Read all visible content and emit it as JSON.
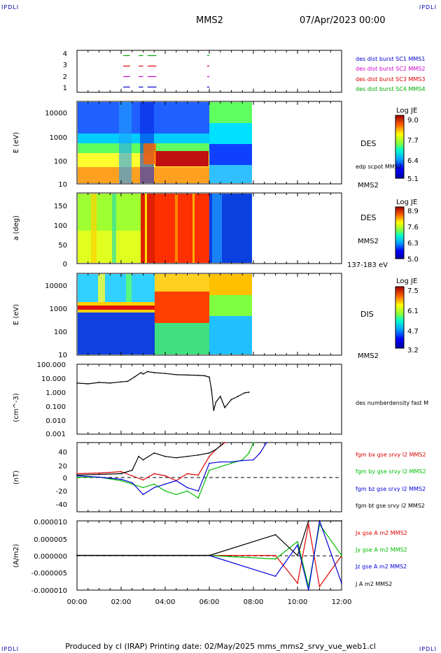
{
  "header": {
    "corner_label": "IPDLI",
    "spacecraft": "MMS2",
    "date": "07/Apr/2023 00:00"
  },
  "footer": {
    "text": "Produced by cl (IRAP)   Printing date: 02/May/2025   mms_mms2_srvy_vue_web1.cl"
  },
  "time_axis": {
    "ticks": [
      "00:00",
      "02:00",
      "04:00",
      "06:00",
      "08:00",
      "10:00",
      "12:00"
    ],
    "range_hours": [
      0,
      12
    ]
  },
  "panels": {
    "burst": {
      "yticks": [
        "4",
        "3",
        "2",
        "1"
      ],
      "legend": [
        {
          "text": "des dist burst SC1 MMS1",
          "color": "#0000cc"
        },
        {
          "text": "des dist burst SC2 MMS2",
          "color": "#cc00cc"
        },
        {
          "text": "des dist burst SC3 MMS3",
          "color": "#dd0000"
        },
        {
          "text": "des dist burst SC4 MMS4",
          "color": "#00aa00"
        }
      ]
    },
    "des_energy": {
      "ylabel": "E (eV)",
      "yticks": [
        "10000",
        "1000",
        "100",
        "10"
      ],
      "side_label": "DES",
      "side_label2": "edp scpot MMS2",
      "bottom_right": "MMS2",
      "colorbar": {
        "title": "Log JE",
        "ticks": [
          "9.0",
          "7.7",
          "6.4",
          "5.1"
        ]
      }
    },
    "des_pitch": {
      "ylabel": "a (deg)",
      "yticks": [
        "150",
        "100",
        "50",
        "0"
      ],
      "side_label": "DES",
      "side_label2": "MMS2",
      "bottom_right": "137-183 eV",
      "colorbar": {
        "title": "Log JE",
        "ticks": [
          "8.9",
          "7.6",
          "6.3",
          "5.0"
        ]
      }
    },
    "dis_energy": {
      "ylabel": "E (eV)",
      "yticks": [
        "10000",
        "1000",
        "100",
        "10"
      ],
      "side_label": "DIS",
      "bottom_right": "MMS2",
      "colorbar": {
        "title": "Log JE",
        "ticks": [
          "7.5",
          "6.1",
          "4.7",
          "3.2"
        ]
      }
    },
    "density": {
      "ylabel": "(cm^-3)",
      "yticks": [
        "100.000",
        "10.000",
        "1.000",
        "0.100",
        "0.010",
        "0.001"
      ],
      "legend": [
        {
          "text": "des numberdensity fast M",
          "color": "#000000"
        }
      ]
    },
    "bfield": {
      "ylabel": "(nT)",
      "yticks": [
        "40",
        "20",
        "0",
        "-20",
        "-40"
      ],
      "legend": [
        {
          "text": "fgm bx gse srvy l2 MMS2",
          "color": "#dd0000"
        },
        {
          "text": "fgm by gse srvy l2 MMS2",
          "color": "#00bb00"
        },
        {
          "text": "fgm bz gse srvy l2 MMS2",
          "color": "#0000dd"
        },
        {
          "text": "fgm bt gse srvy l2 MMS2",
          "color": "#000000"
        }
      ]
    },
    "current": {
      "ylabel": "(A/m2)",
      "yticks": [
        "0.000010",
        "0.000005",
        "0.000000",
        "-0.000005",
        "-0.000010"
      ],
      "legend": [
        {
          "text": "Jx gse A m2 MMS2",
          "color": "#dd0000"
        },
        {
          "text": "Jy gse A m2 MMS2",
          "color": "#00bb00"
        },
        {
          "text": "Jz gse A m2 MMS2",
          "color": "#0000dd"
        },
        {
          "text": "J A m2 MMS2",
          "color": "#000000"
        }
      ]
    }
  },
  "chart_data": [
    {
      "type": "scatter",
      "panel": "burst",
      "series": [
        {
          "name": "des dist burst SC1 MMS1",
          "color": "#0000cc",
          "y": 1,
          "intervals_h": [
            [
              2.1,
              2.4
            ],
            [
              2.8,
              3.0
            ],
            [
              3.2,
              3.6
            ],
            [
              5.9,
              6.0
            ]
          ]
        },
        {
          "name": "des dist burst SC2 MMS2",
          "color": "#cc00cc",
          "y": 2,
          "intervals_h": [
            [
              2.1,
              2.4
            ],
            [
              2.8,
              3.0
            ],
            [
              3.2,
              3.6
            ],
            [
              5.9,
              6.0
            ]
          ]
        },
        {
          "name": "des dist burst SC3 MMS3",
          "color": "#dd0000",
          "y": 3,
          "intervals_h": [
            [
              2.1,
              2.4
            ],
            [
              2.8,
              3.0
            ],
            [
              3.2,
              3.6
            ],
            [
              5.9,
              6.0
            ]
          ]
        },
        {
          "name": "des dist burst SC4 MMS4",
          "color": "#00aa00",
          "y": 4,
          "intervals_h": [
            [
              2.1,
              2.4
            ],
            [
              2.8,
              3.0
            ],
            [
              3.2,
              3.6
            ],
            [
              5.9,
              6.0
            ]
          ]
        }
      ],
      "ylim": [
        0.5,
        4.5
      ]
    },
    {
      "type": "heatmap",
      "panel": "des_energy",
      "x_range_h": [
        0,
        8
      ],
      "ylim": [
        10,
        30000
      ],
      "log_y": true,
      "zlim": [
        5.1,
        9.0
      ]
    },
    {
      "type": "heatmap",
      "panel": "des_pitch",
      "x_range_h": [
        0,
        8
      ],
      "ylim": [
        0,
        180
      ],
      "zlim": [
        5.0,
        8.9
      ]
    },
    {
      "type": "heatmap",
      "panel": "dis_energy",
      "x_range_h": [
        0,
        8
      ],
      "ylim": [
        10,
        20000
      ],
      "log_y": true,
      "zlim": [
        3.2,
        7.5
      ]
    },
    {
      "type": "line",
      "panel": "density",
      "log_y": true,
      "ylim": [
        0.001,
        100
      ],
      "series": [
        {
          "name": "des numberdensity fast M",
          "color": "#000000",
          "x": [
            0.0,
            0.5,
            1.0,
            1.5,
            2.0,
            2.3,
            2.6,
            2.9,
            3.0,
            3.2,
            3.5,
            4.0,
            4.5,
            5.0,
            5.5,
            5.8,
            6.0,
            6.1,
            6.2,
            6.3,
            6.5,
            6.7,
            7.0,
            7.3,
            7.6,
            7.8
          ],
          "y": [
            4.5,
            4.0,
            5.0,
            4.5,
            5.5,
            6.0,
            12,
            25,
            20,
            30,
            25,
            22,
            18,
            17,
            16,
            15,
            12,
            1.5,
            0.05,
            0.2,
            0.5,
            0.08,
            0.3,
            0.5,
            0.9,
            1.0
          ]
        }
      ]
    },
    {
      "type": "line",
      "panel": "bfield",
      "ylim": [
        -50,
        50
      ],
      "series": [
        {
          "name": "fgm bx gse srvy l2 MMS2",
          "color": "#dd0000",
          "x": [
            0,
            1,
            2,
            2.5,
            3,
            3.5,
            4,
            4.5,
            5,
            5.5,
            6,
            6.3,
            6.5,
            6.7
          ],
          "y": [
            5,
            6,
            8,
            2,
            -4,
            5,
            2,
            -5,
            5,
            3,
            30,
            40,
            45,
            50
          ]
        },
        {
          "name": "fgm by gse srvy l2 MMS2",
          "color": "#00bb00",
          "x": [
            0,
            1,
            2,
            2.5,
            3,
            3.5,
            4,
            4.5,
            5,
            5.5,
            6,
            6.5,
            7,
            7.5,
            7.8,
            8.0
          ],
          "y": [
            0,
            0,
            -5,
            -10,
            -15,
            -10,
            -20,
            -25,
            -20,
            -30,
            10,
            15,
            20,
            25,
            35,
            50
          ]
        },
        {
          "name": "fgm bz gse srvy l2 MMS2",
          "color": "#0000dd",
          "x": [
            0,
            1,
            2,
            2.5,
            3,
            3.5,
            4,
            4.5,
            5,
            5.5,
            6,
            6.5,
            7,
            7.5,
            8,
            8.3,
            8.6
          ],
          "y": [
            2,
            0,
            -3,
            -8,
            -25,
            -15,
            -10,
            -5,
            -15,
            -20,
            20,
            22,
            22,
            24,
            25,
            35,
            50
          ]
        },
        {
          "name": "fgm bt gse srvy l2 MMS2",
          "color": "#000000",
          "x": [
            0,
            1,
            2,
            2.5,
            2.8,
            3,
            3.5,
            4,
            4.5,
            5,
            5.5,
            6,
            6.3,
            6.6
          ],
          "y": [
            3,
            4,
            5,
            10,
            30,
            25,
            35,
            30,
            28,
            30,
            32,
            35,
            40,
            48
          ]
        }
      ]
    },
    {
      "type": "line",
      "panel": "current",
      "ylim": [
        -1e-05,
        1e-05
      ],
      "series": [
        {
          "name": "Jx gse A m2 MMS2",
          "color": "#dd0000",
          "x": [
            0,
            3,
            6,
            9,
            10,
            10.5,
            11,
            12
          ],
          "y": [
            0,
            0,
            0,
            0,
            -8e-06,
            9e-06,
            -9e-06,
            0
          ]
        },
        {
          "name": "Jy gse A m2 MMS2",
          "color": "#00bb00",
          "x": [
            0,
            3,
            6,
            9,
            10,
            10.5,
            11,
            12
          ],
          "y": [
            0,
            0,
            0,
            -1e-06,
            4e-06,
            -9e-06,
            9e-06,
            0
          ]
        },
        {
          "name": "Jz gse A m2 MMS2",
          "color": "#0000dd",
          "x": [
            0,
            3,
            6,
            9,
            10,
            10.5,
            11,
            12
          ],
          "y": [
            0,
            0,
            0,
            -6e-06,
            3e-06,
            -1e-05,
            1e-05,
            -8e-06
          ]
        },
        {
          "name": "J A m2 MMS2",
          "color": "#000000",
          "x": [
            0,
            3,
            6,
            9,
            10,
            10.5,
            11,
            12
          ],
          "y": [
            0,
            0,
            0,
            6e-06,
            0,
            1e-05,
            1e-05,
            1e-05
          ]
        }
      ]
    }
  ]
}
